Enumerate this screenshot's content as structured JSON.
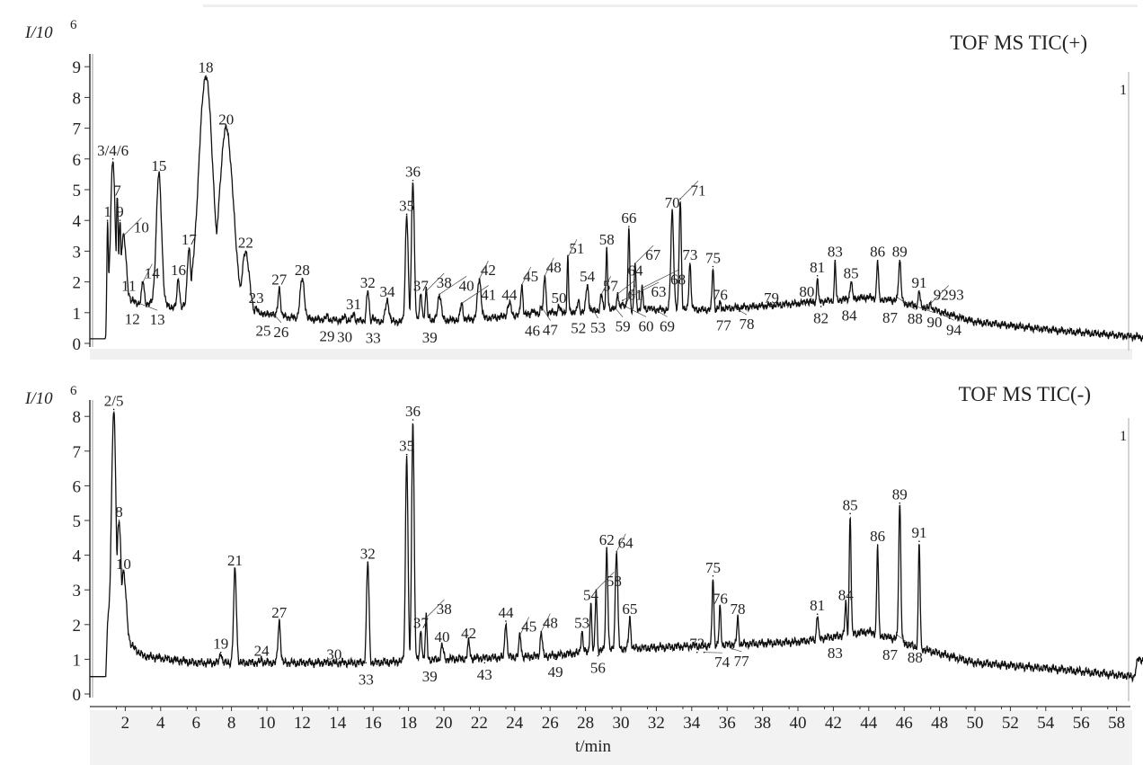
{
  "chart_data": [
    {
      "type": "line",
      "title": "TOF MS TIC(+)",
      "ylabel": "I/10",
      "ylabel_exp": "6",
      "ylim": [
        0,
        9
      ],
      "yticks": [
        "0",
        "1",
        "2",
        "3",
        "4",
        "5",
        "6",
        "7",
        "8",
        "9"
      ],
      "xlim": [
        0,
        59.5
      ],
      "right_marker": "1",
      "baseline": [
        [
          0,
          0.15
        ],
        [
          0.9,
          0.15
        ],
        [
          1.0,
          1.4
        ],
        [
          3,
          1.3
        ],
        [
          6,
          1.1
        ],
        [
          9,
          1.0
        ],
        [
          12,
          0.8
        ],
        [
          16,
          0.72
        ],
        [
          18,
          0.7
        ],
        [
          22,
          0.8
        ],
        [
          26,
          1.0
        ],
        [
          30,
          1.1
        ],
        [
          35,
          1.1
        ],
        [
          40,
          1.3
        ],
        [
          44,
          1.5
        ],
        [
          47,
          1.2
        ],
        [
          50,
          0.7
        ],
        [
          55,
          0.4
        ],
        [
          59.5,
          0.2
        ]
      ],
      "peaks": [
        {
          "label": "1",
          "t": 1.0,
          "I": 4.0,
          "w": 0.04,
          "pos": "above"
        },
        {
          "label": "3/4/6",
          "t": 1.3,
          "I": 6.0,
          "w": 0.12,
          "pos": "above"
        },
        {
          "label": "7",
          "t": 1.55,
          "I": 4.7,
          "w": 0.06,
          "pos": "above"
        },
        {
          "label": "9",
          "t": 1.7,
          "I": 4.0,
          "w": 0.06,
          "pos": "above"
        },
        {
          "label": "10",
          "t": 1.9,
          "I": 3.5,
          "w": 0.15,
          "pos": "above"
        },
        {
          "label": "11",
          "t": 2.2,
          "I": 1.6,
          "w": 0.08,
          "pos": "above"
        },
        {
          "label": "12",
          "t": 2.4,
          "I": 1.4,
          "w": 0.06,
          "pos": "below"
        },
        {
          "label": "13",
          "t": 2.8,
          "I": 1.3,
          "w": 0.06,
          "pos": "below"
        },
        {
          "label": "14",
          "t": 3.0,
          "I": 2.0,
          "w": 0.07,
          "pos": "above"
        },
        {
          "label": "15",
          "t": 3.9,
          "I": 5.5,
          "w": 0.15,
          "pos": "above"
        },
        {
          "label": "16",
          "t": 5.0,
          "I": 2.1,
          "w": 0.07,
          "pos": "above"
        },
        {
          "label": "17",
          "t": 5.6,
          "I": 3.1,
          "w": 0.1,
          "pos": "above"
        },
        {
          "label": "18",
          "t": 6.55,
          "I": 8.7,
          "w": 0.4,
          "pos": "above"
        },
        {
          "label": "20",
          "t": 7.7,
          "I": 7.0,
          "w": 0.4,
          "pos": "above"
        },
        {
          "label": "22",
          "t": 8.8,
          "I": 3.0,
          "w": 0.2,
          "pos": "above"
        },
        {
          "label": "23",
          "t": 9.4,
          "I": 1.2,
          "w": 0.06,
          "pos": "above"
        },
        {
          "label": "25",
          "t": 9.8,
          "I": 1.0,
          "w": 0.06,
          "pos": "below"
        },
        {
          "label": "26",
          "t": 10.3,
          "I": 1.0,
          "w": 0.06,
          "pos": "below"
        },
        {
          "label": "27",
          "t": 10.7,
          "I": 1.8,
          "w": 0.07,
          "pos": "above"
        },
        {
          "label": "28",
          "t": 12.0,
          "I": 2.1,
          "w": 0.12,
          "pos": "above"
        },
        {
          "label": "29",
          "t": 13.4,
          "I": 0.9,
          "w": 0.06,
          "pos": "below"
        },
        {
          "label": "30",
          "t": 14.4,
          "I": 0.9,
          "w": 0.06,
          "pos": "below"
        },
        {
          "label": "31",
          "t": 14.9,
          "I": 1.0,
          "w": 0.06,
          "pos": "above"
        },
        {
          "label": "32",
          "t": 15.7,
          "I": 1.7,
          "w": 0.07,
          "pos": "above"
        },
        {
          "label": "33",
          "t": 16.0,
          "I": 0.9,
          "w": 0.05,
          "pos": "below"
        },
        {
          "label": "34",
          "t": 16.8,
          "I": 1.4,
          "w": 0.1,
          "pos": "above"
        },
        {
          "label": "35",
          "t": 17.9,
          "I": 4.2,
          "w": 0.08,
          "pos": "above"
        },
        {
          "label": "36",
          "t": 18.25,
          "I": 5.3,
          "w": 0.08,
          "pos": "above"
        },
        {
          "label": "37",
          "t": 18.7,
          "I": 1.6,
          "w": 0.07,
          "pos": "above"
        },
        {
          "label": "38",
          "t": 19.0,
          "I": 1.7,
          "w": 0.06,
          "pos": "above"
        },
        {
          "label": "39",
          "t": 19.2,
          "I": 0.9,
          "w": 0.05,
          "pos": "below"
        },
        {
          "label": "40",
          "t": 19.75,
          "I": 1.6,
          "w": 0.1,
          "pos": "above"
        },
        {
          "label": "41",
          "t": 21.0,
          "I": 1.3,
          "w": 0.07,
          "pos": "above"
        },
        {
          "label": "42",
          "t": 22.0,
          "I": 2.1,
          "w": 0.1,
          "pos": "above"
        },
        {
          "label": "44",
          "t": 23.7,
          "I": 1.3,
          "w": 0.1,
          "pos": "above"
        },
        {
          "label": "45",
          "t": 24.4,
          "I": 1.9,
          "w": 0.06,
          "pos": "above"
        },
        {
          "label": "46",
          "t": 25.0,
          "I": 1.1,
          "w": 0.06,
          "pos": "below"
        },
        {
          "label": "47",
          "t": 25.5,
          "I": 1.2,
          "w": 0.06,
          "pos": "below"
        },
        {
          "label": "48",
          "t": 25.7,
          "I": 2.2,
          "w": 0.06,
          "pos": "above"
        },
        {
          "label": "50",
          "t": 26.5,
          "I": 1.2,
          "w": 0.06,
          "pos": "above"
        },
        {
          "label": "51",
          "t": 27.0,
          "I": 2.8,
          "w": 0.04,
          "pos": "above"
        },
        {
          "label": "52",
          "t": 27.6,
          "I": 1.4,
          "w": 0.05,
          "pos": "below"
        },
        {
          "label": "53",
          "t": 28.2,
          "I": 1.3,
          "w": 0.05,
          "pos": "below"
        },
        {
          "label": "54",
          "t": 28.1,
          "I": 1.9,
          "w": 0.07,
          "pos": "above"
        },
        {
          "label": "57",
          "t": 28.9,
          "I": 1.6,
          "w": 0.06,
          "pos": "above"
        },
        {
          "label": "58",
          "t": 29.2,
          "I": 3.1,
          "w": 0.05,
          "pos": "above"
        },
        {
          "label": "59",
          "t": 29.6,
          "I": 1.2,
          "w": 0.05,
          "pos": "below"
        },
        {
          "label": "60",
          "t": 29.9,
          "I": 1.3,
          "w": 0.05,
          "pos": "below"
        },
        {
          "label": "61",
          "t": 30.3,
          "I": 1.3,
          "w": 0.05,
          "pos": "below"
        },
        {
          "label": "63",
          "t": 30.1,
          "I": 1.4,
          "w": 0.05,
          "pos": "below"
        },
        {
          "label": "64",
          "t": 29.8,
          "I": 1.6,
          "w": 0.05,
          "pos": "above"
        },
        {
          "label": "66",
          "t": 30.45,
          "I": 3.8,
          "w": 0.05,
          "pos": "above"
        },
        {
          "label": "67",
          "t": 30.8,
          "I": 2.6,
          "w": 0.05,
          "pos": "above"
        },
        {
          "label": "68",
          "t": 31.2,
          "I": 1.8,
          "w": 0.05,
          "pos": "above"
        },
        {
          "label": "69",
          "t": 31.6,
          "I": 1.2,
          "w": 0.05,
          "pos": "below"
        },
        {
          "label": "70",
          "t": 32.9,
          "I": 4.3,
          "w": 0.08,
          "pos": "above"
        },
        {
          "label": "71",
          "t": 33.35,
          "I": 4.7,
          "w": 0.06,
          "pos": "above"
        },
        {
          "label": "73",
          "t": 33.9,
          "I": 2.6,
          "w": 0.06,
          "pos": "above"
        },
        {
          "label": "75",
          "t": 35.2,
          "I": 2.5,
          "w": 0.05,
          "pos": "above"
        },
        {
          "label": "76",
          "t": 35.6,
          "I": 1.3,
          "w": 0.05,
          "pos": "above"
        },
        {
          "label": "77",
          "t": 35.8,
          "I": 1.1,
          "w": 0.05,
          "pos": "below"
        },
        {
          "label": "78",
          "t": 36.6,
          "I": 1.1,
          "w": 0.05,
          "pos": "below"
        },
        {
          "label": "79",
          "t": 38.5,
          "I": 1.2,
          "w": 0.06,
          "pos": "above"
        },
        {
          "label": "80",
          "t": 40.5,
          "I": 1.4,
          "w": 0.06,
          "pos": "above"
        },
        {
          "label": "81",
          "t": 41.1,
          "I": 2.2,
          "w": 0.04,
          "pos": "above"
        },
        {
          "label": "82",
          "t": 41.3,
          "I": 1.2,
          "w": 0.04,
          "pos": "below"
        },
        {
          "label": "83",
          "t": 42.1,
          "I": 2.7,
          "w": 0.04,
          "pos": "above"
        },
        {
          "label": "84",
          "t": 42.9,
          "I": 1.5,
          "w": 0.05,
          "pos": "below"
        },
        {
          "label": "85",
          "t": 43.0,
          "I": 2.0,
          "w": 0.06,
          "pos": "above"
        },
        {
          "label": "86",
          "t": 44.5,
          "I": 2.7,
          "w": 0.05,
          "pos": "above"
        },
        {
          "label": "87",
          "t": 45.2,
          "I": 1.5,
          "w": 0.05,
          "pos": "below"
        },
        {
          "label": "88",
          "t": 45.6,
          "I": 1.5,
          "w": 0.05,
          "pos": "below"
        },
        {
          "label": "89",
          "t": 45.75,
          "I": 2.7,
          "w": 0.07,
          "pos": "above"
        },
        {
          "label": "90",
          "t": 46.7,
          "I": 1.2,
          "w": 0.05,
          "pos": "below"
        },
        {
          "label": "91",
          "t": 46.85,
          "I": 1.7,
          "w": 0.05,
          "pos": "above"
        },
        {
          "label": "9293",
          "t": 47.5,
          "I": 1.3,
          "w": 0.06,
          "pos": "above"
        },
        {
          "label": "94",
          "t": 48.3,
          "I": 0.9,
          "w": 0.06,
          "pos": "below"
        }
      ]
    },
    {
      "type": "line",
      "title": "TOF MS TIC(-)",
      "ylabel": "I/10",
      "ylabel_exp": "6",
      "ylim": [
        0,
        8
      ],
      "yticks": [
        "0",
        "1",
        "2",
        "3",
        "4",
        "5",
        "6",
        "7",
        "8"
      ],
      "xlim": [
        0,
        59.5
      ],
      "xlabel": "t/min",
      "xticks": [
        "2",
        "4",
        "6",
        "8",
        "10",
        "12",
        "14",
        "16",
        "18",
        "20",
        "22",
        "24",
        "26",
        "28",
        "30",
        "32",
        "34",
        "36",
        "38",
        "40",
        "42",
        "44",
        "46",
        "48",
        "50",
        "52",
        "54",
        "56",
        "58"
      ],
      "right_marker": "1",
      "baseline": [
        [
          0,
          0.5
        ],
        [
          0.9,
          0.5
        ],
        [
          1.0,
          2.0
        ],
        [
          3,
          1.1
        ],
        [
          6,
          0.9
        ],
        [
          10,
          0.9
        ],
        [
          16,
          0.9
        ],
        [
          20,
          1.0
        ],
        [
          26,
          1.1
        ],
        [
          30,
          1.3
        ],
        [
          40,
          1.5
        ],
        [
          44,
          1.8
        ],
        [
          47,
          1.3
        ],
        [
          50,
          0.9
        ],
        [
          55,
          0.7
        ],
        [
          59,
          0.5
        ],
        [
          59.2,
          1.0
        ],
        [
          59.5,
          1.0
        ]
      ],
      "peaks": [
        {
          "label": "2/5",
          "t": 1.35,
          "I": 8.2,
          "w": 0.12,
          "pos": "above"
        },
        {
          "label": "8",
          "t": 1.65,
          "I": 5.0,
          "w": 0.12,
          "pos": "above"
        },
        {
          "label": "10",
          "t": 1.9,
          "I": 3.5,
          "w": 0.15,
          "pos": "above"
        },
        {
          "label": "19",
          "t": 7.4,
          "I": 1.2,
          "w": 0.06,
          "pos": "above"
        },
        {
          "label": "21",
          "t": 8.2,
          "I": 3.6,
          "w": 0.08,
          "pos": "above"
        },
        {
          "label": "24",
          "t": 9.7,
          "I": 1.0,
          "w": 0.06,
          "pos": "above"
        },
        {
          "label": "27",
          "t": 10.7,
          "I": 2.1,
          "w": 0.07,
          "pos": "above"
        },
        {
          "label": "30",
          "t": 13.8,
          "I": 0.9,
          "w": 0.06,
          "pos": "above"
        },
        {
          "label": "32",
          "t": 15.7,
          "I": 3.8,
          "w": 0.07,
          "pos": "above"
        },
        {
          "label": "33",
          "t": 15.6,
          "I": 0.9,
          "w": 0.04,
          "pos": "below"
        },
        {
          "label": "35",
          "t": 17.9,
          "I": 6.9,
          "w": 0.07,
          "pos": "above"
        },
        {
          "label": "36",
          "t": 18.25,
          "I": 7.9,
          "w": 0.07,
          "pos": "above"
        },
        {
          "label": "37",
          "t": 18.7,
          "I": 1.8,
          "w": 0.06,
          "pos": "above"
        },
        {
          "label": "38",
          "t": 19.0,
          "I": 2.2,
          "w": 0.05,
          "pos": "above"
        },
        {
          "label": "39",
          "t": 19.2,
          "I": 1.0,
          "w": 0.05,
          "pos": "below"
        },
        {
          "label": "40",
          "t": 19.9,
          "I": 1.4,
          "w": 0.07,
          "pos": "above"
        },
        {
          "label": "42",
          "t": 21.4,
          "I": 1.5,
          "w": 0.06,
          "pos": "above"
        },
        {
          "label": "43",
          "t": 22.3,
          "I": 0.9,
          "w": 0.05,
          "pos": "below"
        },
        {
          "label": "44",
          "t": 23.5,
          "I": 2.1,
          "w": 0.06,
          "pos": "above"
        },
        {
          "label": "45",
          "t": 24.3,
          "I": 1.7,
          "w": 0.06,
          "pos": "above"
        },
        {
          "label": "48",
          "t": 25.5,
          "I": 1.8,
          "w": 0.06,
          "pos": "above"
        },
        {
          "label": "49",
          "t": 26.3,
          "I": 1.0,
          "w": 0.05,
          "pos": "below"
        },
        {
          "label": "53",
          "t": 27.8,
          "I": 1.8,
          "w": 0.06,
          "pos": "above"
        },
        {
          "label": "54",
          "t": 28.3,
          "I": 2.6,
          "w": 0.05,
          "pos": "above"
        },
        {
          "label": "56",
          "t": 28.7,
          "I": 1.1,
          "w": 0.05,
          "pos": "below"
        },
        {
          "label": "58",
          "t": 28.6,
          "I": 3.0,
          "w": 0.05,
          "pos": "above"
        },
        {
          "label": "62",
          "t": 29.2,
          "I": 4.2,
          "w": 0.06,
          "pos": "above"
        },
        {
          "label": "64",
          "t": 29.75,
          "I": 4.1,
          "w": 0.07,
          "pos": "above"
        },
        {
          "label": "65",
          "t": 30.5,
          "I": 2.2,
          "w": 0.06,
          "pos": "above"
        },
        {
          "label": "72",
          "t": 34.3,
          "I": 1.2,
          "w": 0.05,
          "pos": "above"
        },
        {
          "label": "74",
          "t": 34.7,
          "I": 1.2,
          "w": 0.05,
          "pos": "below"
        },
        {
          "label": "75",
          "t": 35.2,
          "I": 3.4,
          "w": 0.05,
          "pos": "above"
        },
        {
          "label": "76",
          "t": 35.6,
          "I": 2.5,
          "w": 0.05,
          "pos": "above"
        },
        {
          "label": "77",
          "t": 36.3,
          "I": 1.3,
          "w": 0.05,
          "pos": "below"
        },
        {
          "label": "78",
          "t": 36.6,
          "I": 2.2,
          "w": 0.05,
          "pos": "above"
        },
        {
          "label": "81",
          "t": 41.1,
          "I": 2.3,
          "w": 0.05,
          "pos": "above"
        },
        {
          "label": "83",
          "t": 42.1,
          "I": 1.6,
          "w": 0.05,
          "pos": "below"
        },
        {
          "label": "84",
          "t": 42.7,
          "I": 2.6,
          "w": 0.05,
          "pos": "above"
        },
        {
          "label": "85",
          "t": 42.95,
          "I": 5.2,
          "w": 0.05,
          "pos": "above"
        },
        {
          "label": "86",
          "t": 44.5,
          "I": 4.3,
          "w": 0.05,
          "pos": "above"
        },
        {
          "label": "87",
          "t": 45.2,
          "I": 1.7,
          "w": 0.05,
          "pos": "below"
        },
        {
          "label": "88",
          "t": 45.6,
          "I": 1.7,
          "w": 0.05,
          "pos": "below"
        },
        {
          "label": "89",
          "t": 45.75,
          "I": 5.5,
          "w": 0.06,
          "pos": "above"
        },
        {
          "label": "91",
          "t": 46.85,
          "I": 4.4,
          "w": 0.05,
          "pos": "above"
        }
      ]
    }
  ]
}
